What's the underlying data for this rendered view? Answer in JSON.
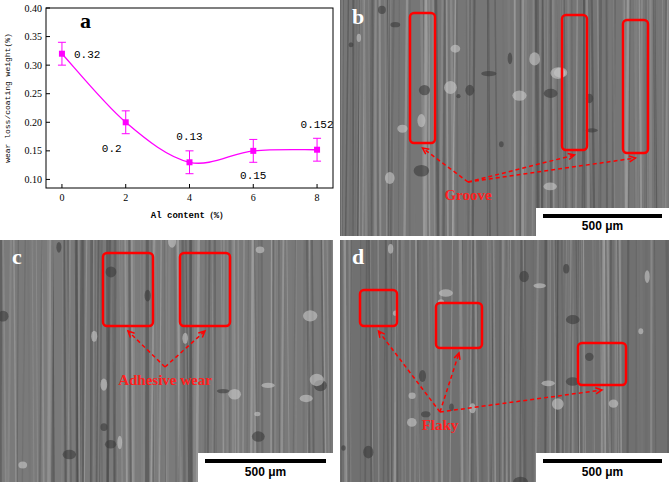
{
  "chart_data": {
    "type": "line",
    "xlabel": "Al content（%）",
    "ylabel": "wear loss/coating weight(%)",
    "x": [
      0,
      2,
      4,
      6,
      8
    ],
    "values": [
      0.32,
      0.2,
      0.13,
      0.15,
      0.152
    ],
    "errors": [
      0.02,
      0.02,
      0.02,
      0.02,
      0.02
    ],
    "color": "#ff00ff",
    "marker": "square",
    "line_style": "solid",
    "data_labels": true,
    "grid": false,
    "xlim": [
      -0.5,
      8.5
    ],
    "ylim": [
      0.085,
      0.4
    ],
    "xticks": [
      0,
      2,
      4,
      6,
      8
    ],
    "yticks": [
      {
        "value": 0.1,
        "label": "0.10"
      },
      0.15,
      {
        "value": 0.2,
        "label": "0.20"
      },
      0.25,
      {
        "value": 0.3,
        "label": "0.30"
      },
      0.35,
      {
        "value": 0.4,
        "label": "0.40"
      }
    ]
  },
  "chart_letter": "a",
  "images": [
    {
      "letter": "b",
      "label": "Groove",
      "scale_bar": "500 μm"
    },
    {
      "letter": "c",
      "label": "Adhesive wear",
      "scale_bar": "500 μm"
    },
    {
      "letter": "d",
      "label": "Flaky",
      "scale_bar": "500 μm"
    }
  ]
}
